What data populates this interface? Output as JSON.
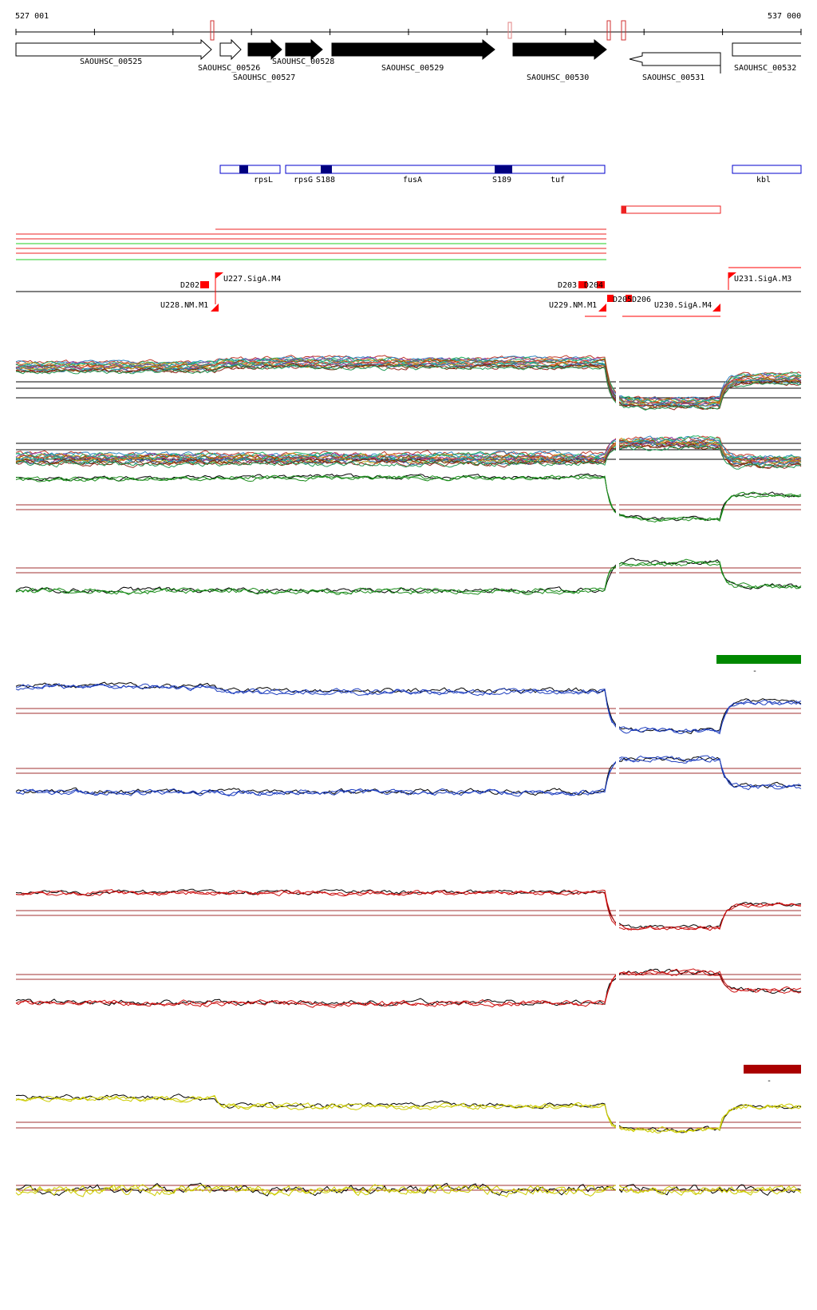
{
  "coordinates": {
    "start": "527 001",
    "end": "537 000"
  },
  "genes": [
    {
      "id": "SAOUHSC_00525",
      "strand": "+",
      "style": "open"
    },
    {
      "id": "SAOUHSC_00526",
      "strand": "+",
      "style": "open"
    },
    {
      "id": "SAOUHSC_00527",
      "strand": "+",
      "style": "filled"
    },
    {
      "id": "SAOUHSC_00528",
      "strand": "+",
      "style": "filled"
    },
    {
      "id": "SAOUHSC_00529",
      "strand": "+",
      "style": "filled"
    },
    {
      "id": "SAOUHSC_00530",
      "strand": "+",
      "style": "filled"
    },
    {
      "id": "SAOUHSC_00531",
      "strand": "-",
      "style": "open"
    },
    {
      "id": "SAOUHSC_00532",
      "strand": "+",
      "style": "open"
    }
  ],
  "gene_names": [
    "rpsL",
    "rpsG",
    "S188",
    "fusA",
    "S189",
    "tuf",
    "kbl"
  ],
  "upshifts": [
    "U227.SigA.M4",
    "U228.NM.M1",
    "U229.NM.M1",
    "U230.SigA.M4",
    "U231.SigA.M3"
  ],
  "downshifts": [
    "D202",
    "D203",
    "D204",
    "D205",
    "D206"
  ],
  "colors": {
    "gene_box": "#0000cc",
    "gene_box_dark": "#000080",
    "shift_marker": "#ff0000",
    "segment_line_red": "#ee2222",
    "segment_line_green": "#22cc22",
    "threshold": "#a03030",
    "green_series": "#1a8c1a",
    "blue_series": "#1f3fbf",
    "red_series": "#cc1111",
    "yellow_series": "#cccc00",
    "legend_green": "#008800",
    "legend_red": "#aa0000"
  },
  "legend_marks": [
    "-",
    "-"
  ]
}
